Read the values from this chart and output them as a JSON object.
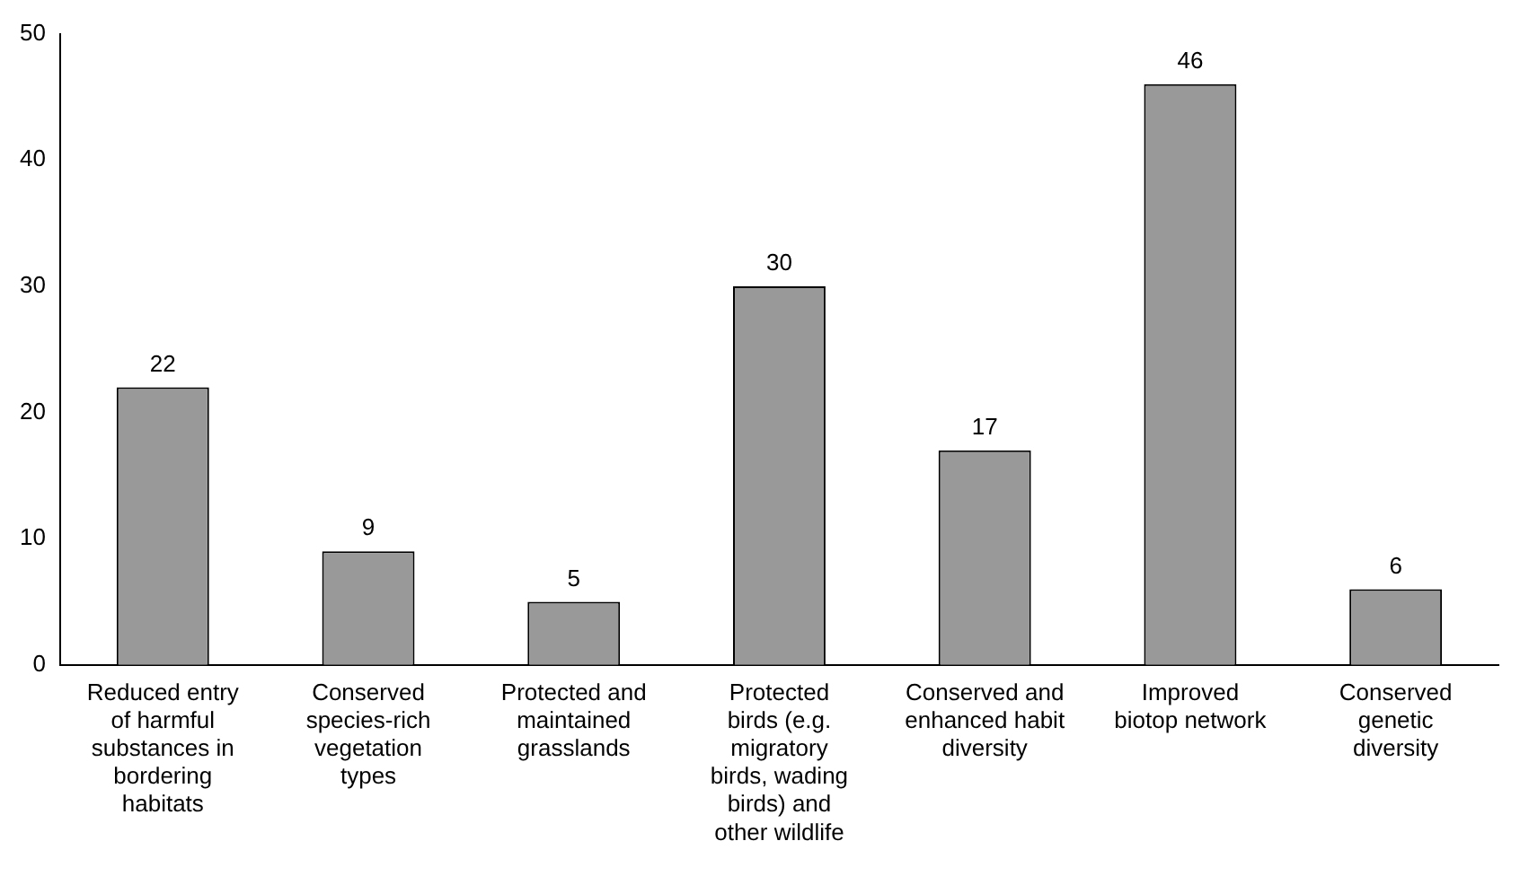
{
  "chart_data": {
    "type": "bar",
    "categories": [
      "Reduced entry of harmful substances in bordering habitats",
      "Conserved species-rich vegetation types",
      "Protected and maintained grasslands",
      "Protected birds (e.g. migratory birds, wading birds) and other wildlife",
      "Conserved and enhanced habit diversity",
      "Improved biotop network",
      "Conserved genetic diversity"
    ],
    "values": [
      22,
      9,
      5,
      30,
      17,
      46,
      6
    ],
    "color": "#999999",
    "ylim": [
      0,
      50
    ],
    "yticks": [
      0,
      10,
      20,
      30,
      40,
      50
    ],
    "grid": false,
    "legend": false,
    "data_labels": true
  }
}
